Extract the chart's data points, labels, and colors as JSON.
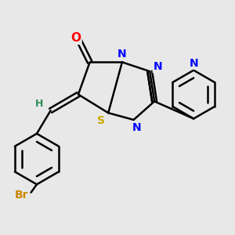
{
  "background_color": "#e8e8e8",
  "bond_color": "#000000",
  "bond_width": 1.8,
  "atom_colors": {
    "O": "#ff0000",
    "N": "#0000ff",
    "S": "#ccaa00",
    "Br": "#cc8800",
    "H": "#2e8b57",
    "C": "#000000"
  },
  "figsize": [
    3.0,
    3.0
  ],
  "dpi": 100
}
